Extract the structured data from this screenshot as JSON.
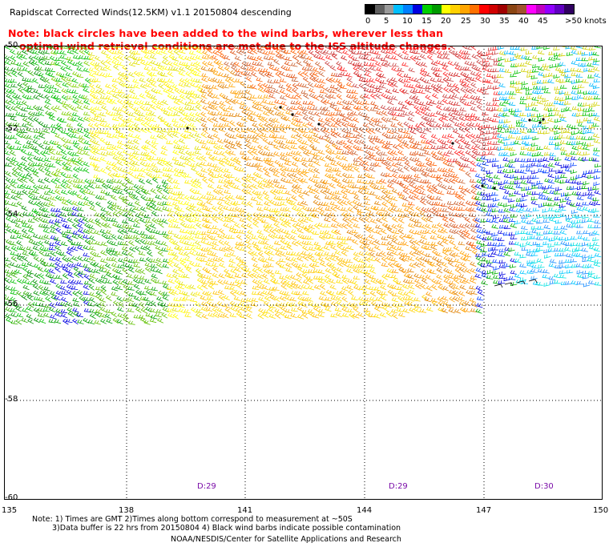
{
  "title": "Rapidscat Corrected Winds(12.5KM) v1.1 20150804 descending",
  "note": {
    "line1": "Note: black circles have been added to the wind barbs, wherever less than",
    "line2": "optimal wind retrieval conditions are met due to the ISS altitude changes."
  },
  "legend": {
    "colors": [
      "#000000",
      "#606060",
      "#9a9a9a",
      "#00bfff",
      "#0080ff",
      "#0000e0",
      "#00d000",
      "#009a00",
      "#ffff00",
      "#ffd000",
      "#ffa500",
      "#ff7000",
      "#ff0000",
      "#d00000",
      "#a00000",
      "#8b4513",
      "#a0522d",
      "#ff00ff",
      "#c000c0",
      "#9000ff",
      "#6000c0",
      "#300060"
    ],
    "labels": [
      "0",
      "5",
      "10",
      "15",
      "20",
      "25",
      "30",
      "35",
      "40",
      "45",
      ">50 knots"
    ]
  },
  "map": {
    "lat_labels": [
      "-50",
      "-52",
      "-54",
      "-56",
      "-58",
      "-60"
    ],
    "lon_labels": [
      "135",
      "138",
      "141",
      "144",
      "147",
      "150"
    ],
    "time_labels": [
      "D:29",
      "D:29",
      "D:30"
    ]
  },
  "footnote": {
    "line1": "Note: 1) Times are GMT 2)Times along bottom correspond to measurement at ~50S",
    "line2": "3)Data buffer is 22 hrs from 20150804 4) Black wind barbs indicate possible contamination"
  },
  "credit": "NOAA/NESDIS/Center for Satellite Applications and Research"
}
